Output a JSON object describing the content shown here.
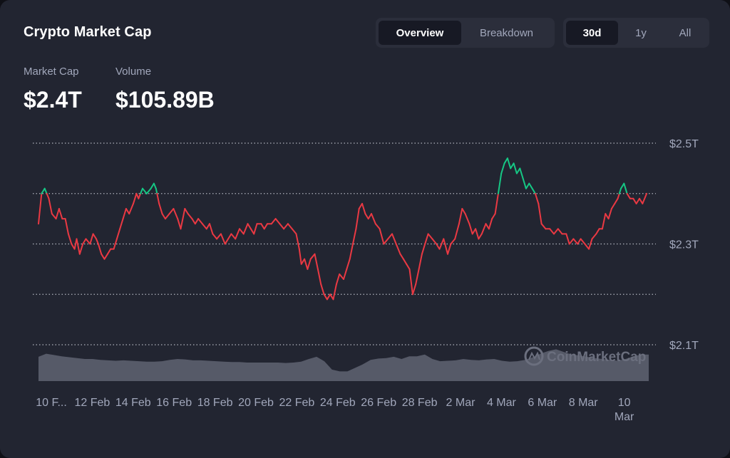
{
  "header": {
    "title": "Crypto Market Cap",
    "view_tabs": [
      {
        "label": "Overview",
        "active": true
      },
      {
        "label": "Breakdown",
        "active": false
      }
    ],
    "range_tabs": [
      {
        "label": "30d",
        "active": true
      },
      {
        "label": "1y",
        "active": false
      },
      {
        "label": "All",
        "active": false
      }
    ]
  },
  "stats": {
    "market_cap_label": "Market Cap",
    "market_cap_value": "$2.4T",
    "volume_label": "Volume",
    "volume_value": "$105.89B"
  },
  "watermark": {
    "text": "CoinMarketCap"
  },
  "colors": {
    "background": "#222531",
    "up": "#16c784",
    "down": "#ea3943",
    "volume": "#5a5d6b",
    "grid": "#c9ccd6"
  },
  "chart_data": {
    "type": "line",
    "title": "",
    "y_axis_position": "right",
    "y_tick_labels": [
      "$2.5T",
      "$2.3T",
      "$2.1T"
    ],
    "y_ticks": [
      2.5,
      2.3,
      2.1
    ],
    "ylim": [
      2.09,
      2.52
    ],
    "grid_values": [
      2.5,
      2.4,
      2.3,
      2.2,
      2.1
    ],
    "grid": true,
    "grid_style": "dotted",
    "baseline": 2.4,
    "x_tick_labels": [
      "10 F...",
      "12 Feb",
      "14 Feb",
      "16 Feb",
      "18 Feb",
      "20 Feb",
      "22 Feb",
      "24 Feb",
      "26 Feb",
      "28 Feb",
      "2 Mar",
      "4 Mar",
      "6 Mar",
      "8 Mar",
      "10 Mar"
    ],
    "xlim": [
      0,
      29.6
    ],
    "series": [
      {
        "color_above_baseline": "#16c784",
        "color_below_baseline": "#ea3943",
        "points": [
          [
            0.0,
            2.34
          ],
          [
            0.15,
            2.4
          ],
          [
            0.3,
            2.41
          ],
          [
            0.5,
            2.39
          ],
          [
            0.65,
            2.36
          ],
          [
            0.85,
            2.35
          ],
          [
            1.0,
            2.37
          ],
          [
            1.15,
            2.35
          ],
          [
            1.3,
            2.35
          ],
          [
            1.45,
            2.32
          ],
          [
            1.6,
            2.3
          ],
          [
            1.75,
            2.29
          ],
          [
            1.85,
            2.31
          ],
          [
            2.0,
            2.28
          ],
          [
            2.15,
            2.3
          ],
          [
            2.3,
            2.31
          ],
          [
            2.5,
            2.3
          ],
          [
            2.65,
            2.32
          ],
          [
            2.8,
            2.31
          ],
          [
            2.9,
            2.3
          ],
          [
            3.05,
            2.28
          ],
          [
            3.2,
            2.27
          ],
          [
            3.35,
            2.28
          ],
          [
            3.5,
            2.29
          ],
          [
            3.65,
            2.29
          ],
          [
            3.8,
            2.31
          ],
          [
            3.95,
            2.33
          ],
          [
            4.1,
            2.35
          ],
          [
            4.25,
            2.37
          ],
          [
            4.4,
            2.36
          ],
          [
            4.6,
            2.38
          ],
          [
            4.75,
            2.4
          ],
          [
            4.85,
            2.39
          ],
          [
            5.05,
            2.41
          ],
          [
            5.25,
            2.4
          ],
          [
            5.45,
            2.41
          ],
          [
            5.6,
            2.42
          ],
          [
            5.7,
            2.41
          ],
          [
            5.85,
            2.38
          ],
          [
            6.0,
            2.36
          ],
          [
            6.15,
            2.35
          ],
          [
            6.35,
            2.36
          ],
          [
            6.55,
            2.37
          ],
          [
            6.75,
            2.35
          ],
          [
            6.9,
            2.33
          ],
          [
            7.1,
            2.37
          ],
          [
            7.25,
            2.36
          ],
          [
            7.45,
            2.35
          ],
          [
            7.6,
            2.34
          ],
          [
            7.75,
            2.35
          ],
          [
            7.95,
            2.34
          ],
          [
            8.15,
            2.33
          ],
          [
            8.3,
            2.34
          ],
          [
            8.45,
            2.32
          ],
          [
            8.65,
            2.31
          ],
          [
            8.85,
            2.32
          ],
          [
            9.05,
            2.3
          ],
          [
            9.2,
            2.31
          ],
          [
            9.35,
            2.32
          ],
          [
            9.55,
            2.31
          ],
          [
            9.75,
            2.33
          ],
          [
            9.95,
            2.32
          ],
          [
            10.15,
            2.34
          ],
          [
            10.3,
            2.33
          ],
          [
            10.45,
            2.32
          ],
          [
            10.6,
            2.34
          ],
          [
            10.8,
            2.34
          ],
          [
            10.95,
            2.33
          ],
          [
            11.1,
            2.34
          ],
          [
            11.3,
            2.34
          ],
          [
            11.5,
            2.35
          ],
          [
            11.7,
            2.34
          ],
          [
            11.9,
            2.33
          ],
          [
            12.1,
            2.34
          ],
          [
            12.3,
            2.33
          ],
          [
            12.5,
            2.32
          ],
          [
            12.65,
            2.29
          ],
          [
            12.75,
            2.26
          ],
          [
            12.9,
            2.27
          ],
          [
            13.05,
            2.25
          ],
          [
            13.2,
            2.27
          ],
          [
            13.4,
            2.28
          ],
          [
            13.55,
            2.25
          ],
          [
            13.7,
            2.22
          ],
          [
            13.85,
            2.2
          ],
          [
            14.0,
            2.19
          ],
          [
            14.15,
            2.2
          ],
          [
            14.3,
            2.19
          ],
          [
            14.45,
            2.22
          ],
          [
            14.6,
            2.24
          ],
          [
            14.8,
            2.23
          ],
          [
            14.95,
            2.25
          ],
          [
            15.1,
            2.27
          ],
          [
            15.25,
            2.3
          ],
          [
            15.4,
            2.33
          ],
          [
            15.55,
            2.37
          ],
          [
            15.7,
            2.38
          ],
          [
            15.85,
            2.36
          ],
          [
            16.0,
            2.35
          ],
          [
            16.15,
            2.36
          ],
          [
            16.35,
            2.34
          ],
          [
            16.55,
            2.33
          ],
          [
            16.75,
            2.3
          ],
          [
            16.95,
            2.31
          ],
          [
            17.15,
            2.32
          ],
          [
            17.35,
            2.3
          ],
          [
            17.55,
            2.28
          ],
          [
            17.7,
            2.27
          ],
          [
            17.85,
            2.26
          ],
          [
            18.0,
            2.25
          ],
          [
            18.15,
            2.2
          ],
          [
            18.3,
            2.22
          ],
          [
            18.45,
            2.25
          ],
          [
            18.6,
            2.28
          ],
          [
            18.75,
            2.3
          ],
          [
            18.9,
            2.32
          ],
          [
            19.1,
            2.31
          ],
          [
            19.3,
            2.3
          ],
          [
            19.45,
            2.29
          ],
          [
            19.65,
            2.31
          ],
          [
            19.85,
            2.28
          ],
          [
            20.0,
            2.3
          ],
          [
            20.2,
            2.31
          ],
          [
            20.4,
            2.34
          ],
          [
            20.55,
            2.37
          ],
          [
            20.7,
            2.36
          ],
          [
            20.9,
            2.34
          ],
          [
            21.05,
            2.32
          ],
          [
            21.2,
            2.33
          ],
          [
            21.35,
            2.31
          ],
          [
            21.5,
            2.32
          ],
          [
            21.7,
            2.34
          ],
          [
            21.85,
            2.33
          ],
          [
            22.0,
            2.35
          ],
          [
            22.15,
            2.36
          ],
          [
            22.3,
            2.4
          ],
          [
            22.45,
            2.44
          ],
          [
            22.6,
            2.46
          ],
          [
            22.75,
            2.47
          ],
          [
            22.9,
            2.45
          ],
          [
            23.05,
            2.46
          ],
          [
            23.2,
            2.44
          ],
          [
            23.35,
            2.45
          ],
          [
            23.5,
            2.43
          ],
          [
            23.65,
            2.41
          ],
          [
            23.8,
            2.42
          ],
          [
            23.95,
            2.41
          ],
          [
            24.1,
            2.4
          ],
          [
            24.25,
            2.38
          ],
          [
            24.4,
            2.34
          ],
          [
            24.6,
            2.33
          ],
          [
            24.8,
            2.33
          ],
          [
            25.0,
            2.32
          ],
          [
            25.2,
            2.33
          ],
          [
            25.4,
            2.32
          ],
          [
            25.6,
            2.32
          ],
          [
            25.75,
            2.3
          ],
          [
            25.95,
            2.31
          ],
          [
            26.15,
            2.3
          ],
          [
            26.3,
            2.31
          ],
          [
            26.5,
            2.3
          ],
          [
            26.7,
            2.29
          ],
          [
            26.85,
            2.31
          ],
          [
            27.05,
            2.32
          ],
          [
            27.2,
            2.33
          ],
          [
            27.35,
            2.33
          ],
          [
            27.5,
            2.36
          ],
          [
            27.65,
            2.35
          ],
          [
            27.8,
            2.37
          ],
          [
            27.95,
            2.38
          ],
          [
            28.1,
            2.39
          ],
          [
            28.25,
            2.41
          ],
          [
            28.4,
            2.42
          ],
          [
            28.55,
            2.4
          ],
          [
            28.7,
            2.39
          ],
          [
            28.85,
            2.39
          ],
          [
            29.0,
            2.38
          ],
          [
            29.15,
            2.39
          ],
          [
            29.3,
            2.38
          ],
          [
            29.5,
            2.4
          ]
        ]
      }
    ],
    "volume": {
      "color": "#5a5d6b",
      "relative_values": [
        0.55,
        0.62,
        0.59,
        0.56,
        0.54,
        0.52,
        0.5,
        0.5,
        0.48,
        0.47,
        0.46,
        0.47,
        0.46,
        0.45,
        0.44,
        0.44,
        0.45,
        0.48,
        0.5,
        0.49,
        0.47,
        0.47,
        0.46,
        0.45,
        0.44,
        0.43,
        0.43,
        0.42,
        0.42,
        0.42,
        0.42,
        0.42,
        0.41,
        0.42,
        0.44,
        0.5,
        0.55,
        0.45,
        0.26,
        0.22,
        0.22,
        0.3,
        0.38,
        0.48,
        0.51,
        0.52,
        0.55,
        0.5,
        0.56,
        0.56,
        0.6,
        0.5,
        0.45,
        0.46,
        0.47,
        0.5,
        0.48,
        0.47,
        0.49,
        0.5,
        0.46,
        0.44,
        0.45,
        0.48,
        0.54,
        0.62,
        0.68,
        0.72,
        0.66,
        0.6,
        0.58,
        0.55,
        0.52,
        0.5,
        0.48,
        0.46,
        0.5,
        0.56,
        0.6,
        0.6
      ]
    }
  }
}
